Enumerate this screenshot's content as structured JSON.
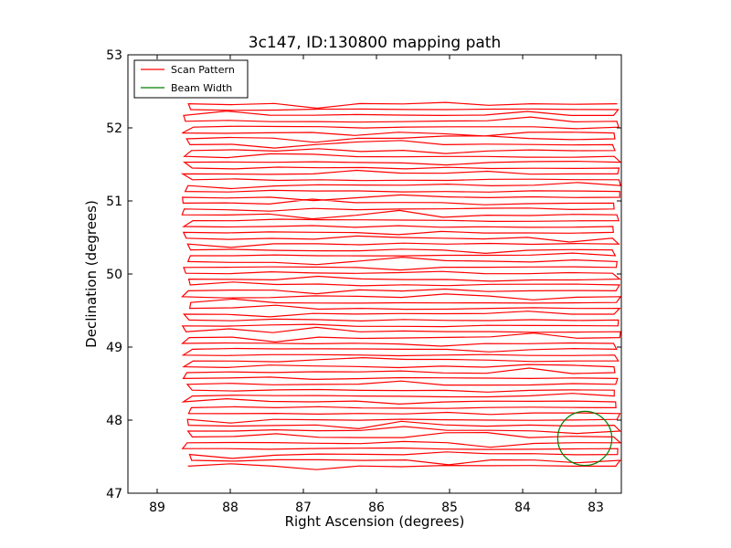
{
  "chart_data": {
    "type": "line",
    "title": "3c147, ID:130800 mapping path",
    "xlabel": "Right Ascension (degrees)",
    "ylabel": "Declination (degrees)",
    "xlim": [
      89.4,
      82.65
    ],
    "ylim": [
      47,
      53
    ],
    "x_ticks": [
      "89",
      "88",
      "87",
      "86",
      "85",
      "84",
      "83"
    ],
    "y_ticks": [
      "47",
      "48",
      "49",
      "50",
      "51",
      "52",
      "53"
    ],
    "x_tick_values": [
      89,
      88,
      87,
      86,
      85,
      84,
      83
    ],
    "y_tick_values": [
      47,
      48,
      49,
      50,
      51,
      52,
      53
    ],
    "grid": false,
    "legend": {
      "placement": "top-left",
      "entries": [
        "Scan Pattern",
        "Beam Width"
      ]
    },
    "scan": {
      "ra_left": 88.58,
      "ra_right": 82.72,
      "dec_min": 47.37,
      "dec_max": 52.33,
      "rows": 63
    },
    "series": [
      {
        "name": "Scan Pattern",
        "color": "#ff0000"
      },
      {
        "name": "Beam Width",
        "color": "#007f00",
        "center": [
          83.15,
          47.75
        ],
        "radius_deg": 0.37
      }
    ]
  }
}
